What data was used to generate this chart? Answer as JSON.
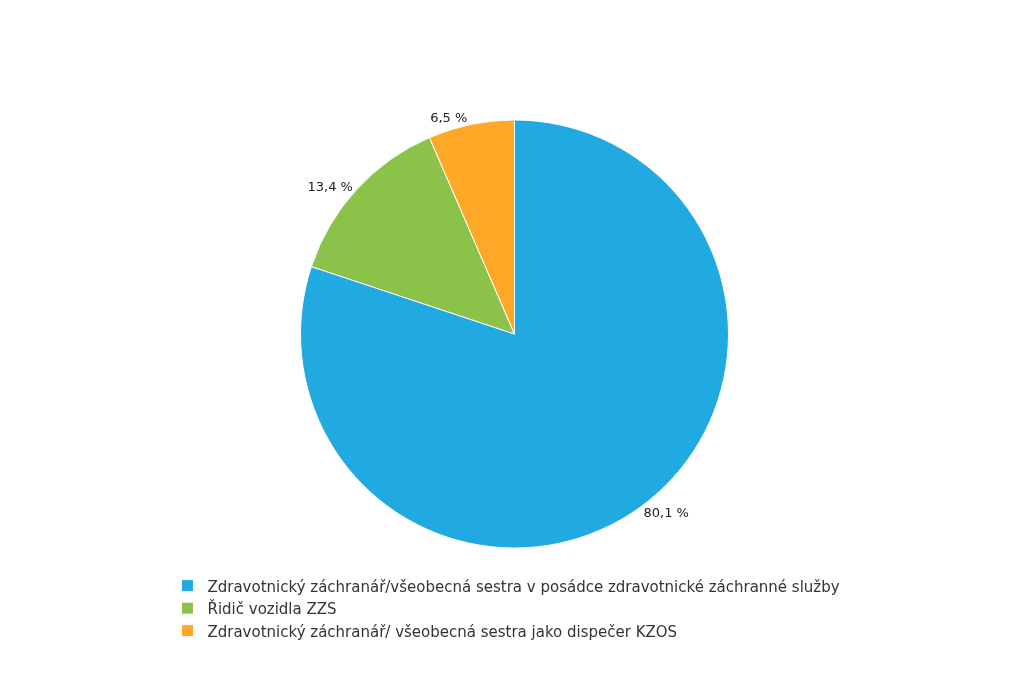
{
  "chart_data": {
    "type": "pie",
    "categories": [
      "Zdravotnický záchranář/všeobecná sestra v posádce zdravotnické záchranné služby",
      "Řidič vozidla ZZS",
      "Zdravotnický záchranář/ všeobecná sestra jako dispečer KZOS"
    ],
    "values": [
      80.1,
      13.4,
      6.5
    ],
    "value_labels": [
      "80,1 %",
      "13,4 %",
      "6,5 %"
    ],
    "colors": [
      "#21a9e1",
      "#8bc34a",
      "#ffa726"
    ],
    "legend": "bottom"
  }
}
